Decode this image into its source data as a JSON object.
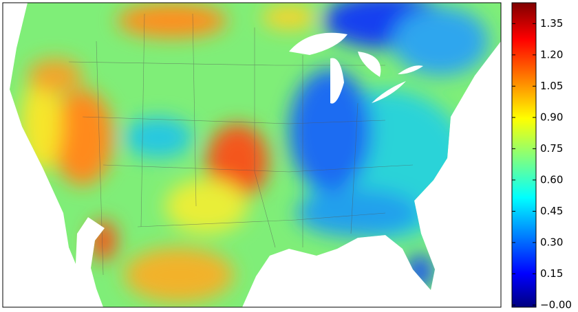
{
  "colorbar": {
    "colormap": "jet",
    "lim": [
      -0.01,
      1.45
    ],
    "ticks": [
      {
        "value": 0,
        "label": "−0.00"
      },
      0.15,
      {
        "value": 0.3,
        "label": "0.30"
      },
      0.45,
      {
        "value": 0.6,
        "label": "0.60"
      },
      0.75,
      {
        "value": 0.9,
        "label": "0.90"
      },
      1.05,
      {
        "value": 1.2,
        "label": "1.20"
      },
      1.35
    ]
  }
}
